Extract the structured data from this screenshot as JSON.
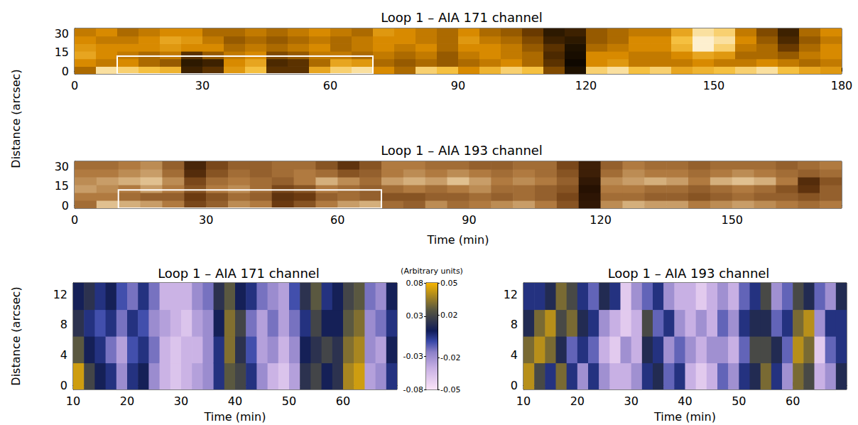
{
  "chart_data": [
    {
      "type": "heatmap",
      "title": "Loop 1 – AIA 171 channel",
      "ylabel": "Distance (arcsec)",
      "color": "gold",
      "xlim": [
        0,
        180
      ],
      "xticks": [
        0,
        30,
        60,
        90,
        120,
        150,
        180
      ],
      "ylim": [
        -2,
        34
      ],
      "yticks": [
        0,
        15,
        30
      ],
      "color_range": [
        0,
        1
      ],
      "x_edges": [
        0,
        5,
        10,
        15,
        20,
        25,
        30,
        35,
        40,
        45,
        50,
        55,
        60,
        65,
        70,
        75,
        80,
        85,
        90,
        95,
        100,
        105,
        110,
        115,
        120,
        125,
        130,
        135,
        140,
        145,
        150,
        155,
        160,
        165,
        170,
        175,
        180
      ],
      "y_edges": [
        -2,
        4,
        10,
        16,
        22,
        28,
        34
      ],
      "cells": [
        [
          0.5,
          0.6,
          0.7,
          0.65,
          0.6,
          0.55
        ],
        [
          0.9,
          0.55,
          0.6,
          0.6,
          0.55,
          0.6
        ],
        [
          0.85,
          0.6,
          0.55,
          0.6,
          0.55,
          0.5
        ],
        [
          0.8,
          0.5,
          0.5,
          0.6,
          0.6,
          0.55
        ],
        [
          0.75,
          0.45,
          0.55,
          0.65,
          0.7,
          0.6
        ],
        [
          0.2,
          0.15,
          0.3,
          0.6,
          0.65,
          0.6
        ],
        [
          0.3,
          0.2,
          0.45,
          0.6,
          0.55,
          0.5
        ],
        [
          0.65,
          0.6,
          0.55,
          0.5,
          0.45,
          0.5
        ],
        [
          0.8,
          0.7,
          0.6,
          0.55,
          0.5,
          0.55
        ],
        [
          0.3,
          0.25,
          0.4,
          0.5,
          0.45,
          0.5
        ],
        [
          0.3,
          0.3,
          0.45,
          0.55,
          0.5,
          0.55
        ],
        [
          0.7,
          0.5,
          0.55,
          0.6,
          0.55,
          0.6
        ],
        [
          0.85,
          0.7,
          0.55,
          0.5,
          0.5,
          0.55
        ],
        [
          0.9,
          0.65,
          0.5,
          0.55,
          0.55,
          0.5
        ],
        [
          0.6,
          0.5,
          0.55,
          0.6,
          0.6,
          0.65
        ],
        [
          0.5,
          0.45,
          0.5,
          0.55,
          0.6,
          0.6
        ],
        [
          0.85,
          0.5,
          0.55,
          0.6,
          0.55,
          0.55
        ],
        [
          0.8,
          0.45,
          0.45,
          0.5,
          0.5,
          0.5
        ],
        [
          0.6,
          0.5,
          0.55,
          0.6,
          0.65,
          0.6
        ],
        [
          0.75,
          0.55,
          0.6,
          0.6,
          0.55,
          0.5
        ],
        [
          0.85,
          0.6,
          0.55,
          0.55,
          0.5,
          0.45
        ],
        [
          0.8,
          0.5,
          0.5,
          0.45,
          0.4,
          0.35
        ],
        [
          0.4,
          0.3,
          0.25,
          0.3,
          0.2,
          0.15
        ],
        [
          0.1,
          0.05,
          0.08,
          0.1,
          0.15,
          0.2
        ],
        [
          0.85,
          0.6,
          0.6,
          0.5,
          0.45,
          0.45
        ],
        [
          0.9,
          0.65,
          0.6,
          0.55,
          0.5,
          0.5
        ],
        [
          0.8,
          0.55,
          0.55,
          0.6,
          0.6,
          0.55
        ],
        [
          0.85,
          0.55,
          0.55,
          0.6,
          0.6,
          0.55
        ],
        [
          0.7,
          0.55,
          0.6,
          0.75,
          0.8,
          0.7
        ],
        [
          0.75,
          0.6,
          0.7,
          0.95,
          0.95,
          0.9
        ],
        [
          0.8,
          0.55,
          0.65,
          0.85,
          0.9,
          0.85
        ],
        [
          0.85,
          0.55,
          0.5,
          0.55,
          0.6,
          0.55
        ],
        [
          0.9,
          0.6,
          0.5,
          0.5,
          0.45,
          0.4
        ],
        [
          0.8,
          0.55,
          0.45,
          0.35,
          0.25,
          0.2
        ],
        [
          0.7,
          0.5,
          0.55,
          0.5,
          0.45,
          0.5
        ],
        [
          0.65,
          0.55,
          0.6,
          0.6,
          0.55,
          0.6
        ]
      ],
      "box": {
        "x": [
          10,
          70
        ],
        "y": [
          -2,
          12
        ]
      }
    },
    {
      "type": "heatmap",
      "title": "Loop 1 – AIA 193 channel",
      "xlabel": "Time (min)",
      "color": "brown",
      "xlim": [
        0,
        175
      ],
      "xticks": [
        0,
        30,
        60,
        90,
        120,
        150
      ],
      "ylim": [
        -2,
        34
      ],
      "yticks": [
        0,
        15,
        30
      ],
      "color_range": [
        0,
        1
      ],
      "x_edges": [
        0,
        5,
        10,
        15,
        20,
        25,
        30,
        35,
        40,
        45,
        50,
        55,
        60,
        65,
        70,
        75,
        80,
        85,
        90,
        95,
        100,
        105,
        110,
        115,
        120,
        125,
        130,
        135,
        140,
        145,
        150,
        155,
        160,
        165,
        170,
        175
      ],
      "y_edges": [
        -2,
        4,
        10,
        16,
        22,
        28,
        34
      ],
      "cells": [
        [
          0.55,
          0.6,
          0.7,
          0.65,
          0.6,
          0.55
        ],
        [
          0.8,
          0.6,
          0.65,
          0.7,
          0.6,
          0.55
        ],
        [
          0.75,
          0.55,
          0.6,
          0.75,
          0.65,
          0.6
        ],
        [
          0.7,
          0.5,
          0.7,
          0.8,
          0.7,
          0.65
        ],
        [
          0.6,
          0.5,
          0.6,
          0.65,
          0.55,
          0.5
        ],
        [
          0.4,
          0.35,
          0.45,
          0.4,
          0.25,
          0.2
        ],
        [
          0.5,
          0.45,
          0.6,
          0.55,
          0.45,
          0.4
        ],
        [
          0.65,
          0.55,
          0.65,
          0.6,
          0.55,
          0.5
        ],
        [
          0.6,
          0.5,
          0.55,
          0.55,
          0.5,
          0.5
        ],
        [
          0.35,
          0.3,
          0.4,
          0.5,
          0.55,
          0.55
        ],
        [
          0.45,
          0.35,
          0.45,
          0.6,
          0.6,
          0.55
        ],
        [
          0.6,
          0.5,
          0.6,
          0.75,
          0.55,
          0.45
        ],
        [
          0.7,
          0.55,
          0.55,
          0.65,
          0.45,
          0.3
        ],
        [
          0.75,
          0.5,
          0.5,
          0.55,
          0.5,
          0.45
        ],
        [
          0.55,
          0.45,
          0.55,
          0.7,
          0.6,
          0.6
        ],
        [
          0.5,
          0.45,
          0.6,
          0.75,
          0.65,
          0.6
        ],
        [
          0.65,
          0.5,
          0.55,
          0.7,
          0.6,
          0.55
        ],
        [
          0.55,
          0.5,
          0.6,
          0.8,
          0.65,
          0.55
        ],
        [
          0.6,
          0.55,
          0.65,
          0.7,
          0.6,
          0.5
        ],
        [
          0.65,
          0.5,
          0.55,
          0.6,
          0.55,
          0.5
        ],
        [
          0.7,
          0.55,
          0.55,
          0.65,
          0.6,
          0.55
        ],
        [
          0.6,
          0.5,
          0.5,
          0.6,
          0.55,
          0.55
        ],
        [
          0.45,
          0.4,
          0.45,
          0.5,
          0.45,
          0.4
        ],
        [
          0.1,
          0.08,
          0.05,
          0.1,
          0.15,
          0.15
        ],
        [
          0.65,
          0.55,
          0.6,
          0.65,
          0.55,
          0.5
        ],
        [
          0.75,
          0.55,
          0.6,
          0.7,
          0.65,
          0.6
        ],
        [
          0.7,
          0.5,
          0.55,
          0.75,
          0.6,
          0.55
        ],
        [
          0.7,
          0.5,
          0.55,
          0.7,
          0.6,
          0.55
        ],
        [
          0.6,
          0.45,
          0.5,
          0.6,
          0.55,
          0.5
        ],
        [
          0.65,
          0.5,
          0.55,
          0.75,
          0.6,
          0.55
        ],
        [
          0.7,
          0.55,
          0.6,
          0.8,
          0.65,
          0.55
        ],
        [
          0.65,
          0.5,
          0.55,
          0.75,
          0.6,
          0.55
        ],
        [
          0.6,
          0.5,
          0.45,
          0.6,
          0.55,
          0.5
        ],
        [
          0.55,
          0.45,
          0.3,
          0.25,
          0.5,
          0.55
        ],
        [
          0.6,
          0.5,
          0.5,
          0.45,
          0.55,
          0.6
        ]
      ],
      "box": {
        "x": [
          10,
          70
        ],
        "y": [
          -2,
          12
        ]
      }
    },
    {
      "type": "heatmap",
      "title": "Loop 1 – AIA 171 channel",
      "xlabel": "Time (min)",
      "ylabel": "Distance (arcsec)",
      "color": "blue-yellow",
      "xlim": [
        10,
        70
      ],
      "xticks": [
        10,
        20,
        30,
        40,
        50,
        60
      ],
      "ylim": [
        -0.5,
        13.5
      ],
      "yticks": [
        0,
        4,
        8,
        12
      ],
      "x_edges": [
        10,
        12,
        14,
        16,
        18,
        20,
        22,
        24,
        26,
        28,
        30,
        32,
        34,
        36,
        38,
        40,
        42,
        44,
        46,
        48,
        50,
        52,
        54,
        56,
        58,
        60,
        62,
        64,
        66,
        68,
        70
      ],
      "y_edges": [
        -0.5,
        3,
        6.5,
        10,
        13.5
      ],
      "cells": [
        [
          0.07,
          0.04,
          0.02,
          0.01
        ],
        [
          0.03,
          0.01,
          0.0,
          0.02
        ],
        [
          0.01,
          0.0,
          -0.01,
          0.0
        ],
        [
          0.0,
          -0.02,
          0.0,
          0.01
        ],
        [
          -0.03,
          -0.04,
          -0.02,
          -0.01
        ],
        [
          0.0,
          -0.01,
          0.0,
          -0.02
        ],
        [
          0.01,
          0.0,
          -0.01,
          0.0
        ],
        [
          -0.03,
          -0.02,
          -0.03,
          -0.02
        ],
        [
          -0.05,
          -0.05,
          -0.04,
          -0.05
        ],
        [
          -0.06,
          -0.06,
          -0.05,
          -0.05
        ],
        [
          -0.05,
          -0.05,
          -0.06,
          -0.05
        ],
        [
          -0.04,
          -0.05,
          -0.04,
          -0.03
        ],
        [
          -0.03,
          -0.03,
          -0.03,
          -0.02
        ],
        [
          0.0,
          0.0,
          0.01,
          0.02
        ],
        [
          0.04,
          0.05,
          0.05,
          0.04
        ],
        [
          0.03,
          0.02,
          0.03,
          0.01
        ],
        [
          0.0,
          -0.01,
          -0.02,
          0.0
        ],
        [
          -0.03,
          -0.04,
          -0.04,
          -0.02
        ],
        [
          -0.05,
          -0.03,
          -0.02,
          -0.03
        ],
        [
          -0.06,
          -0.05,
          -0.04,
          -0.04
        ],
        [
          -0.04,
          -0.03,
          -0.02,
          -0.01
        ],
        [
          0.02,
          0.01,
          0.0,
          0.02
        ],
        [
          0.03,
          0.02,
          0.03,
          0.04
        ],
        [
          0.01,
          0.03,
          0.01,
          0.0
        ],
        [
          0.02,
          0.02,
          0.01,
          0.01
        ],
        [
          0.06,
          0.05,
          0.04,
          0.03
        ],
        [
          0.07,
          0.06,
          0.05,
          0.04
        ],
        [
          -0.04,
          -0.03,
          -0.03,
          -0.02
        ],
        [
          -0.03,
          -0.04,
          -0.02,
          -0.03
        ],
        [
          0.0,
          0.01,
          0.0,
          0.01
        ]
      ],
      "colorbar": {
        "label": "(Arbitrary units)",
        "range": [
          -0.08,
          0.08
        ],
        "ticks": [
          -0.08,
          -0.03,
          0.03,
          0.08
        ]
      }
    },
    {
      "type": "heatmap",
      "title": "Loop 1 – AIA 193 channel",
      "xlabel": "Time (min)",
      "color": "blue-yellow",
      "xlim": [
        10,
        70
      ],
      "xticks": [
        10,
        20,
        30,
        40,
        50,
        60
      ],
      "ylim": [
        -0.5,
        13.5
      ],
      "yticks": [
        0,
        4,
        8,
        12
      ],
      "x_edges": [
        10,
        12,
        14,
        16,
        18,
        20,
        22,
        24,
        26,
        28,
        30,
        32,
        34,
        36,
        38,
        40,
        42,
        44,
        46,
        48,
        50,
        52,
        54,
        56,
        58,
        60,
        62,
        64,
        66,
        68,
        70
      ],
      "y_edges": [
        -0.5,
        3,
        6.5,
        10,
        13.5
      ],
      "cells": [
        [
          0.04,
          0.03,
          0.01,
          0.0
        ],
        [
          0.02,
          0.04,
          0.03,
          0.0
        ],
        [
          0.0,
          0.03,
          0.04,
          0.01
        ],
        [
          0.03,
          0.01,
          0.02,
          0.03
        ],
        [
          0.0,
          -0.01,
          0.03,
          0.02
        ],
        [
          -0.02,
          0.0,
          0.01,
          0.0
        ],
        [
          0.0,
          -0.01,
          0.0,
          -0.01
        ],
        [
          -0.02,
          -0.03,
          -0.02,
          0.01
        ],
        [
          -0.03,
          -0.04,
          -0.03,
          0.0
        ],
        [
          -0.03,
          -0.02,
          -0.04,
          -0.04
        ],
        [
          -0.02,
          -0.03,
          -0.03,
          -0.02
        ],
        [
          0.0,
          0.01,
          0.02,
          -0.01
        ],
        [
          0.01,
          0.0,
          -0.01,
          0.0
        ],
        [
          -0.01,
          -0.02,
          0.0,
          -0.02
        ],
        [
          0.0,
          -0.01,
          -0.02,
          -0.03
        ],
        [
          -0.03,
          -0.02,
          -0.03,
          -0.03
        ],
        [
          -0.04,
          -0.03,
          -0.02,
          -0.04
        ],
        [
          -0.03,
          -0.02,
          -0.03,
          -0.03
        ],
        [
          -0.01,
          -0.02,
          -0.01,
          -0.02
        ],
        [
          -0.02,
          -0.03,
          -0.02,
          -0.03
        ],
        [
          0.0,
          -0.01,
          0.0,
          -0.01
        ],
        [
          0.01,
          0.02,
          0.01,
          0.0
        ],
        [
          0.03,
          0.02,
          0.01,
          0.02
        ],
        [
          0.0,
          0.01,
          -0.01,
          -0.02
        ],
        [
          -0.02,
          -0.01,
          0.0,
          -0.01
        ],
        [
          0.03,
          0.04,
          0.03,
          0.02
        ],
        [
          0.02,
          0.03,
          0.04,
          0.01
        ],
        [
          -0.03,
          -0.04,
          -0.02,
          -0.01
        ],
        [
          -0.02,
          -0.01,
          0.0,
          -0.02
        ],
        [
          0.01,
          0.0,
          0.0,
          0.01
        ]
      ],
      "colorbar": {
        "range": [
          -0.05,
          0.05
        ],
        "ticks": [
          -0.05,
          -0.02,
          0.02,
          0.05
        ]
      }
    }
  ]
}
